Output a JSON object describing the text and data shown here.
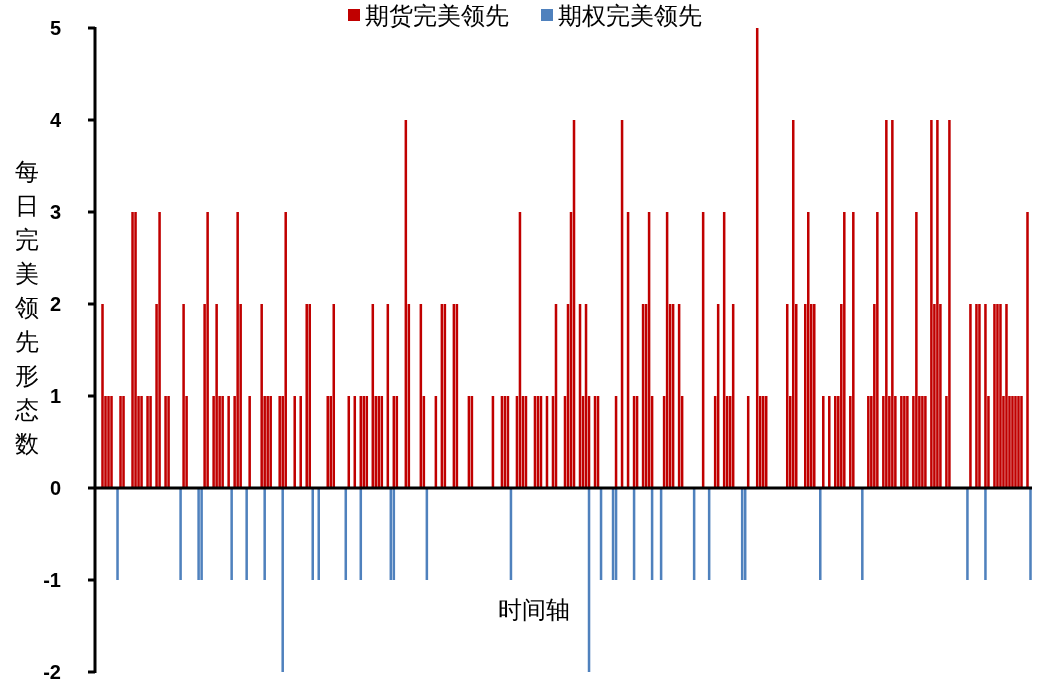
{
  "chart_data": {
    "type": "bar",
    "ylabel": "每日完美领先形态数",
    "xlabel": "时间轴",
    "legend": "top",
    "ylim": [
      -2,
      5
    ],
    "yticks": [
      -2,
      -1,
      0,
      1,
      2,
      3,
      4,
      5
    ],
    "categories": [
      null,
      null,
      null,
      null,
      null,
      null,
      null,
      null,
      null,
      null,
      null,
      null,
      null,
      null,
      null,
      null,
      null,
      null,
      null,
      null,
      null,
      null,
      null,
      null,
      null,
      null,
      null,
      null,
      null,
      null,
      null,
      null,
      null,
      null,
      null,
      null,
      null,
      null,
      null,
      null,
      null,
      null,
      null,
      null,
      null,
      null,
      null,
      null,
      null,
      null,
      null,
      null,
      null,
      null,
      null,
      null,
      null,
      null,
      null,
      null,
      null,
      null,
      null,
      null,
      null,
      null,
      null,
      null,
      null,
      null,
      null,
      null,
      null,
      null,
      null,
      null,
      null,
      null,
      null,
      null,
      null,
      null,
      null,
      null,
      null,
      null,
      null,
      null,
      null,
      null,
      null,
      null,
      null,
      null,
      null,
      null,
      null,
      null,
      null,
      null,
      null,
      null,
      null,
      null,
      null,
      null,
      null,
      null,
      null,
      null,
      null,
      null,
      null,
      null,
      null,
      null,
      null,
      null,
      null,
      null,
      null,
      null,
      null,
      null,
      null,
      null,
      null,
      null,
      null,
      null,
      null,
      null,
      null,
      null,
      null,
      null,
      null,
      null,
      null,
      null,
      null,
      null,
      null,
      null,
      null,
      null,
      null,
      null,
      null,
      null,
      null,
      null,
      null,
      null,
      null,
      null,
      null,
      null,
      null,
      null,
      null,
      null,
      null,
      null,
      null,
      null,
      null,
      null,
      null,
      null,
      null,
      null,
      null,
      null,
      null,
      null,
      null,
      null,
      null,
      null,
      null,
      null,
      null,
      null,
      null,
      null,
      null,
      null,
      null,
      null,
      null,
      null,
      null,
      null,
      null,
      null,
      null,
      null,
      null,
      null,
      null,
      null,
      null,
      null,
      null,
      null,
      null,
      null,
      null,
      null,
      null,
      null,
      null,
      null,
      null,
      null,
      null,
      null,
      null,
      null,
      null,
      null,
      null,
      null,
      null,
      null,
      null,
      null,
      null,
      null,
      null,
      null,
      null,
      null,
      null,
      null,
      null,
      null,
      null,
      null,
      null,
      null,
      null,
      null,
      null,
      null,
      null,
      null,
      null,
      null,
      null,
      null,
      null,
      null,
      null,
      null,
      null,
      null,
      null,
      null,
      null,
      null,
      null,
      null,
      null,
      null,
      null,
      null,
      null,
      null,
      null,
      null,
      null,
      null,
      null,
      null,
      null,
      null,
      null,
      null,
      null,
      null,
      null,
      null,
      null,
      null,
      null,
      null,
      null,
      null,
      null,
      null,
      null,
      null,
      null,
      null,
      null,
      null,
      null,
      null,
      null,
      null,
      null,
      null,
      null,
      null,
      null,
      null,
      null,
      null,
      null,
      null
    ],
    "series": [
      {
        "name": "期货完美领先",
        "color": "#c00000",
        "values": [
          0,
          0,
          2,
          1,
          1,
          1,
          0,
          0,
          1,
          1,
          0,
          0,
          3,
          3,
          1,
          1,
          0,
          1,
          1,
          0,
          2,
          3,
          0,
          1,
          1,
          0,
          0,
          0,
          0,
          2,
          1,
          0,
          0,
          0,
          0,
          0,
          2,
          3,
          0,
          1,
          2,
          1,
          1,
          0,
          1,
          0,
          1,
          3,
          2,
          0,
          0,
          1,
          0,
          0,
          0,
          2,
          1,
          1,
          1,
          0,
          0,
          1,
          1,
          3,
          0,
          0,
          1,
          0,
          1,
          0,
          2,
          2,
          0,
          0,
          0,
          0,
          0,
          1,
          1,
          2,
          0,
          0,
          0,
          0,
          1,
          0,
          1,
          0,
          1,
          1,
          1,
          0,
          2,
          1,
          1,
          1,
          0,
          2,
          0,
          1,
          1,
          0,
          0,
          4,
          2,
          0,
          0,
          0,
          2,
          1,
          0,
          0,
          0,
          1,
          0,
          2,
          2,
          0,
          0,
          2,
          2,
          0,
          0,
          0,
          1,
          1,
          0,
          0,
          0,
          0,
          0,
          0,
          1,
          0,
          0,
          1,
          1,
          1,
          0,
          0,
          1,
          3,
          1,
          1,
          0,
          0,
          1,
          1,
          1,
          0,
          1,
          0,
          1,
          2,
          0,
          0,
          1,
          2,
          3,
          4,
          0,
          2,
          1,
          2,
          1,
          0,
          1,
          1,
          0,
          0,
          0,
          0,
          0,
          1,
          0,
          4,
          0,
          3,
          0,
          1,
          1,
          0,
          2,
          2,
          3,
          1,
          0,
          0,
          0,
          1,
          3,
          2,
          2,
          0,
          2,
          1,
          0,
          0,
          0,
          0,
          0,
          0,
          3,
          0,
          0,
          0,
          1,
          2,
          0,
          3,
          1,
          1,
          2,
          0,
          0,
          0,
          0,
          1,
          0,
          0,
          5,
          1,
          1,
          1,
          0,
          0,
          0,
          0,
          0,
          0,
          2,
          1,
          4,
          2,
          0,
          0,
          2,
          3,
          2,
          2,
          0,
          0,
          1,
          0,
          1,
          0,
          1,
          1,
          2,
          3,
          0,
          1,
          3,
          0,
          0,
          0,
          0,
          1,
          1,
          2,
          3,
          0,
          1,
          4,
          1,
          4,
          1,
          0,
          1,
          1,
          1,
          0,
          1,
          3,
          1,
          1,
          1,
          0,
          4,
          2,
          4,
          2,
          0,
          1,
          4,
          0,
          0,
          0,
          0,
          0,
          0,
          2,
          0,
          2,
          2,
          0,
          2,
          1,
          0,
          2,
          2,
          2,
          1,
          2,
          1,
          1,
          1,
          1,
          1,
          0,
          3,
          0
        ]
      },
      {
        "name": "期权完美领先",
        "color": "#4f81bd",
        "values": [
          0,
          0,
          0,
          0,
          0,
          0,
          0,
          -1,
          0,
          0,
          0,
          0,
          0,
          0,
          0,
          0,
          0,
          0,
          0,
          0,
          0,
          0,
          0,
          0,
          0,
          0,
          0,
          0,
          -1,
          0,
          0,
          0,
          0,
          0,
          -1,
          -1,
          0,
          0,
          0,
          0,
          0,
          0,
          0,
          0,
          0,
          -1,
          0,
          0,
          0,
          0,
          -1,
          0,
          0,
          0,
          0,
          0,
          -1,
          0,
          0,
          0,
          0,
          0,
          -2,
          0,
          0,
          0,
          0,
          0,
          0,
          0,
          0,
          0,
          -1,
          0,
          -1,
          0,
          0,
          0,
          0,
          0,
          0,
          0,
          0,
          -1,
          0,
          0,
          0,
          0,
          -1,
          0,
          0,
          0,
          0,
          0,
          0,
          0,
          0,
          0,
          -1,
          -1,
          0,
          0,
          0,
          0,
          0,
          0,
          0,
          0,
          0,
          0,
          -1,
          0,
          0,
          0,
          0,
          0,
          0,
          0,
          0,
          0,
          0,
          0,
          0,
          0,
          0,
          0,
          0,
          0,
          0,
          0,
          0,
          0,
          0,
          0,
          0,
          0,
          0,
          0,
          -1,
          0,
          0,
          0,
          0,
          0,
          0,
          0,
          0,
          0,
          0,
          0,
          0,
          0,
          0,
          0,
          0,
          0,
          0,
          0,
          0,
          0,
          0,
          0,
          0,
          0,
          -2,
          0,
          0,
          0,
          -1,
          0,
          0,
          0,
          -1,
          -1,
          0,
          0,
          0,
          0,
          0,
          -1,
          0,
          0,
          0,
          0,
          0,
          -1,
          0,
          0,
          -1,
          0,
          0,
          0,
          0,
          0,
          0,
          0,
          0,
          0,
          0,
          -1,
          0,
          0,
          0,
          0,
          -1,
          0,
          0,
          0,
          0,
          0,
          0,
          0,
          0,
          0,
          0,
          -1,
          -1,
          0,
          0,
          0,
          0,
          0,
          0,
          0,
          0,
          0,
          0,
          0,
          0,
          0,
          0,
          0,
          0,
          0,
          0,
          0,
          0,
          0,
          0,
          0,
          0,
          -1,
          0,
          0,
          0,
          0,
          0,
          0,
          0,
          0,
          0,
          0,
          0,
          0,
          0,
          -1,
          0,
          0,
          0,
          0,
          0,
          0,
          0,
          0,
          0,
          0,
          0,
          0,
          0,
          0,
          0,
          0,
          0,
          0,
          0,
          0,
          0,
          0,
          0,
          0,
          0,
          0,
          0,
          0,
          0,
          0,
          0,
          0,
          0,
          0,
          -1,
          0,
          0,
          0,
          0,
          0,
          -1,
          0,
          0,
          0,
          0,
          0,
          0,
          0,
          0,
          0,
          0,
          0,
          0,
          0,
          0,
          -1
        ]
      }
    ]
  }
}
